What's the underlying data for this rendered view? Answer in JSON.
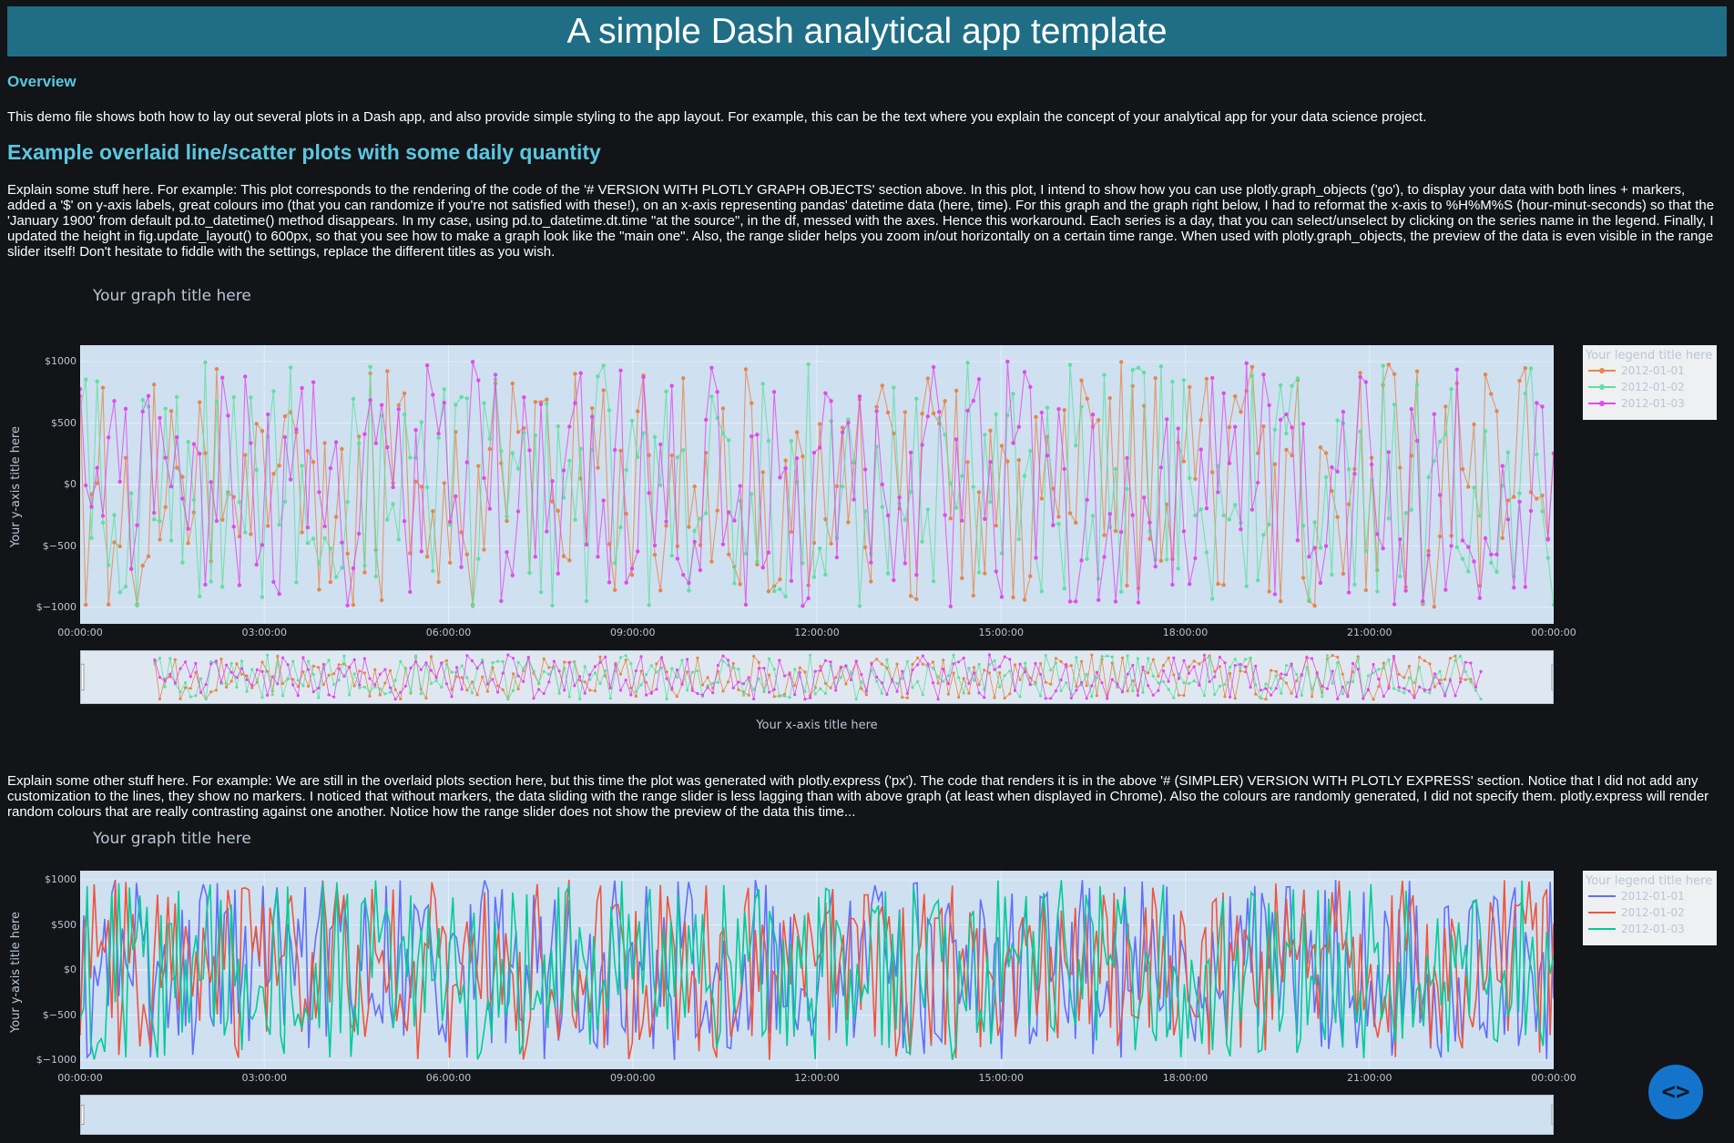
{
  "app": {
    "title": "A simple Dash analytical app template",
    "overview_heading": "Overview",
    "overview_text": "This demo file shows both how to lay out several plots in a Dash app, and also provide simple styling to the app layout. For example, this can be the text where you explain the concept of your analytical app for your data science project.",
    "section_heading": "Example overlaid line/scatter plots with some daily quantity",
    "section_text_1": "Explain some stuff here. For example: This plot corresponds to the rendering of the code of the '# VERSION WITH PLOTLY GRAPH OBJECTS' section above. In this plot, I intend to show how you can use plotly.graph_objects ('go'), to display your data with both lines + markers, added a '$' on y-axis labels, great colours imo (that you can randomize if you're not satisfied with these!), on an x-axis representing pandas' datetime data (here, time). For this graph and the graph right below, I had to reformat the x-axis to %H%M%S (hour-minut-seconds) so that the 'January 1900' from default pd.to_datetime() method disappears. In my case, using pd.to_datetime.dt.time \"at the source\", in the df, messed with the axes. Hence this workaround. Each series is a day, that you can select/unselect by clicking on the series name in the legend. Finally, I updated the height in fig.update_layout() to 600px, so that you see how to make a graph look like the \"main one\". Also, the range slider helps you zoom in/out horizontally on a certain time range. When used with plotly.graph_objects, the preview of the data is even visible in the range slider itself! Don't hesitate to fiddle with the settings, replace the different titles as you wish.",
    "section_text_2": "Explain some other stuff here. For example: We are still in the overlaid plots section here, but this time the plot was generated with plotly.express ('px'). The code that renders it is in the above '# (SIMPLER) VERSION WITH PLOTLY EXPRESS' section. Notice that I did not add any customization to the lines, they show no markers. I noticed that without markers, the data sliding with the range slider is less lagging than with above graph (at least when displayed in Chrome). Also the colours are randomly generated, I did not specify them. plotly.express will render random colours that are really contrasting against one another. Notice how the range slider does not show the preview of the data this time...",
    "fab_icon": "code-icon",
    "fab_glyph": "<>"
  },
  "chart_data": [
    {
      "type": "line",
      "mode": "lines+markers",
      "title": "Your graph title here",
      "xlabel": "Your x-axis title here",
      "ylabel": "Your y-axis title here",
      "legend_title": "Your legend title here",
      "legend_position": "top-right",
      "x_ticks": [
        "00:00:00",
        "03:00:00",
        "06:00:00",
        "09:00:00",
        "12:00:00",
        "15:00:00",
        "18:00:00",
        "21:00:00",
        "00:00:00"
      ],
      "y_ticks": [
        "$1000",
        "$500",
        "$0",
        "$−500",
        "$−1000"
      ],
      "ylim": [
        -1000,
        1000
      ],
      "grid": true,
      "rangeslider": true,
      "rangeslider_preview": true,
      "series": [
        {
          "name": "2012-01-01",
          "color": "#e5874a",
          "seed": 11
        },
        {
          "name": "2012-01-02",
          "color": "#5fe0a0",
          "seed": 23
        },
        {
          "name": "2012-01-03",
          "color": "#e14bea",
          "seed": 37
        }
      ]
    },
    {
      "type": "line",
      "mode": "lines",
      "title": "Your graph title here",
      "xlabel": "",
      "ylabel": "Your y-axis title here",
      "legend_title": "Your legend title here",
      "legend_position": "top-right",
      "x_ticks": [
        "00:00:00",
        "03:00:00",
        "06:00:00",
        "09:00:00",
        "12:00:00",
        "15:00:00",
        "18:00:00",
        "21:00:00",
        "00:00:00"
      ],
      "y_ticks": [
        "$1000",
        "$500",
        "$0",
        "$−500",
        "$−1000"
      ],
      "ylim": [
        -1000,
        1000
      ],
      "grid": true,
      "rangeslider": true,
      "rangeslider_preview": false,
      "series": [
        {
          "name": "2012-01-01",
          "color": "#636efa",
          "seed": 41
        },
        {
          "name": "2012-01-02",
          "color": "#ef553b",
          "seed": 53
        },
        {
          "name": "2012-01-03",
          "color": "#00cc96",
          "seed": 67
        }
      ]
    }
  ]
}
